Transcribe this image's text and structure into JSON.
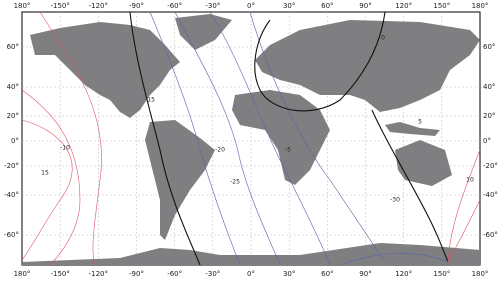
{
  "map": {
    "longitude_labels": [
      "180°",
      "-150°",
      "-120°",
      "-90°",
      "-60°",
      "-30°",
      "0°",
      "30°",
      "60°",
      "90°",
      "120°",
      "150°",
      "180°"
    ],
    "latitude_labels": [
      "60°",
      "40°",
      "20°",
      "0°",
      "-20°",
      "-40°",
      "-60°"
    ],
    "contour_labels": [
      "15",
      "-10",
      "-20",
      "-25",
      "-5",
      "5",
      "0",
      "-15",
      "10",
      "-30"
    ]
  }
}
